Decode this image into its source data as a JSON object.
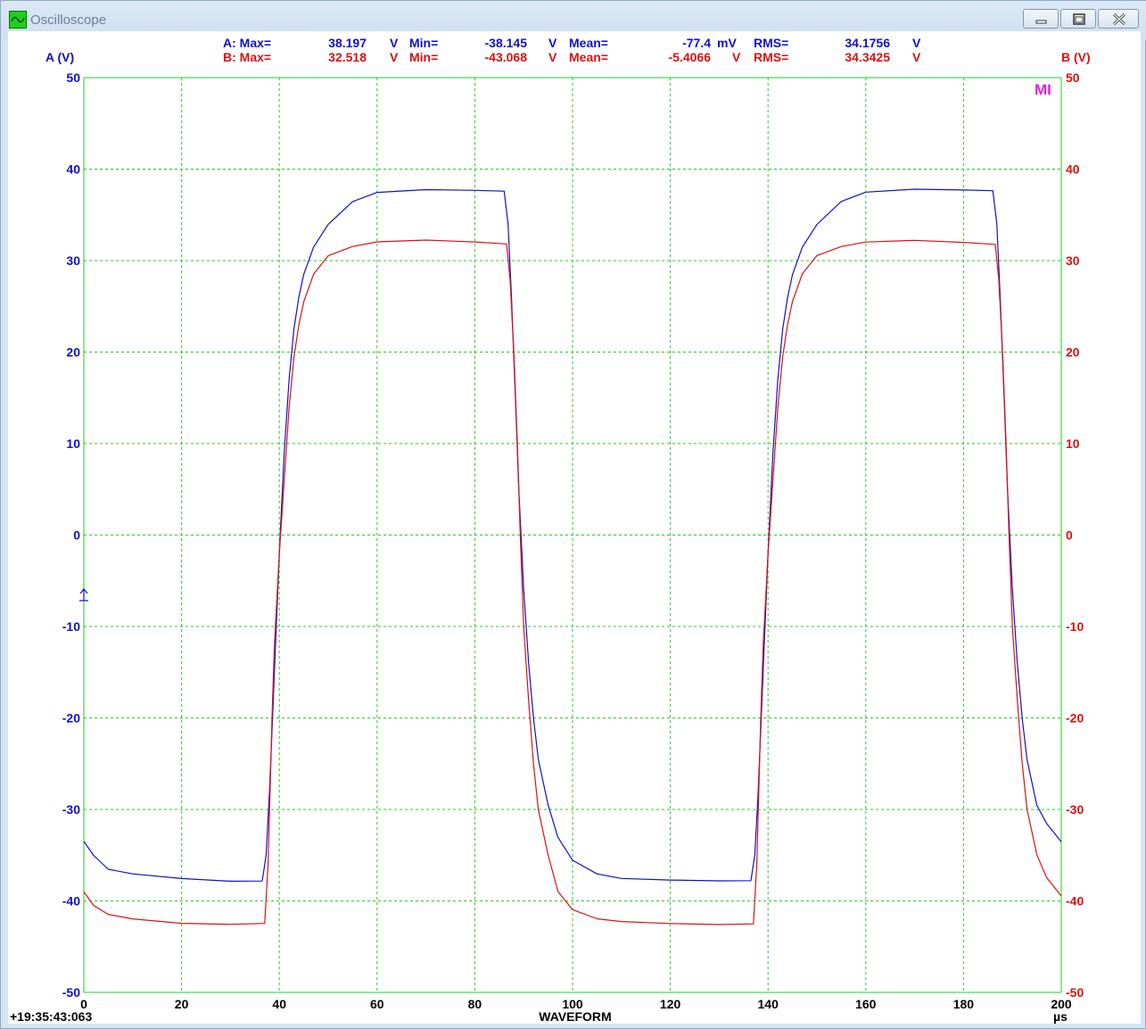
{
  "window": {
    "title": "Oscilloscope",
    "icon": "oscilloscope-icon",
    "buttons": [
      "minimize-icon",
      "maximize-icon",
      "close-icon"
    ]
  },
  "colors": {
    "channel_a": "#1010c8",
    "channel_b": "#dd1010",
    "grid": "#22cc22",
    "marker": "#e020e0"
  },
  "stats": {
    "a": {
      "label": "A: Max=",
      "max": "38.197",
      "max_unit": "V",
      "min_label": "Min=",
      "min": "-38.145",
      "min_unit": "V",
      "mean_label": "Mean=",
      "mean": "-77.4",
      "mean_unit": "mV",
      "rms_label": "RMS=",
      "rms": "34.1756",
      "rms_unit": "V"
    },
    "b": {
      "label": "B: Max=",
      "max": "32.518",
      "max_unit": "V",
      "min_label": "Min=",
      "min": "-43.068",
      "min_unit": "V",
      "mean_label": "Mean=",
      "mean": "-5.4066",
      "mean_unit": "V",
      "rms_label": "RMS=",
      "rms": "34.3425",
      "rms_unit": "V"
    }
  },
  "marker_label": "MI",
  "timestamp": "+19:35:43:063",
  "chart_data": {
    "type": "line",
    "title": "WAVEFORM",
    "xlabel": "µs",
    "y_left_label": "A (V)",
    "y_right_label": "B (V)",
    "xlim": [
      0,
      200
    ],
    "ylim": [
      -50,
      50
    ],
    "x_ticks": [
      "0",
      "20",
      "40",
      "60",
      "80",
      "100",
      "120",
      "140",
      "160",
      "180",
      "200"
    ],
    "y_ticks": [
      "50",
      "40",
      "30",
      "20",
      "10",
      "0",
      "-10",
      "-20",
      "-30",
      "-40",
      "-50"
    ],
    "grid": true,
    "series": [
      {
        "name": "A",
        "x": [
          0,
          2,
          5,
          10,
          20,
          30,
          36.5,
          37.3,
          38,
          39,
          40,
          41,
          42,
          43,
          44,
          45,
          47,
          50,
          55,
          60,
          70,
          80,
          86,
          86.8,
          87.5,
          88.3,
          89,
          90,
          91,
          92,
          93,
          95,
          97,
          100,
          105,
          110,
          120,
          130,
          136.5,
          137.3,
          138,
          139,
          140,
          141,
          142,
          143,
          144,
          145,
          147,
          150,
          155,
          160,
          170,
          180,
          186,
          186.8,
          187.5,
          188.3,
          189,
          190,
          191,
          192,
          193,
          195,
          197,
          200
        ],
        "y": [
          -33.5,
          -35,
          -36.5,
          -37,
          -37.5,
          -37.8,
          -37.8,
          -35,
          -28,
          -15,
          -2,
          9,
          17,
          22.5,
          26,
          28.5,
          31.5,
          34,
          36.5,
          37.5,
          37.8,
          37.7,
          37.6,
          34,
          26,
          15,
          5,
          -6,
          -14,
          -20,
          -24.5,
          -29.5,
          -33,
          -35.5,
          -37,
          -37.5,
          -37.7,
          -37.8,
          -37.8,
          -35,
          -28,
          -15,
          -2,
          9,
          17,
          22.5,
          26,
          28.5,
          31.5,
          34,
          36.5,
          37.5,
          37.8,
          37.7,
          37.6,
          34,
          26,
          15,
          5,
          -6,
          -14,
          -20,
          -24.5,
          -29.5,
          -31.5,
          -33.5
        ]
      },
      {
        "name": "B",
        "x": [
          0,
          2,
          5,
          10,
          20,
          30,
          37,
          37.7,
          38.5,
          39,
          40,
          41,
          42,
          43,
          44,
          45,
          47,
          50,
          55,
          60,
          70,
          80,
          86.5,
          87.2,
          88,
          88.7,
          89.3,
          90,
          91,
          92,
          93,
          95,
          97,
          100,
          105,
          110,
          120,
          130,
          137,
          137.7,
          138.5,
          139,
          140,
          141,
          142,
          143,
          144,
          145,
          147,
          150,
          155,
          160,
          170,
          180,
          186.5,
          187.2,
          188,
          188.7,
          189.3,
          190,
          191,
          192,
          193,
          195,
          197,
          200
        ],
        "y": [
          -39,
          -40.5,
          -41.5,
          -42,
          -42.5,
          -42.6,
          -42.5,
          -36,
          -20,
          -12,
          -2,
          6,
          14,
          19.5,
          23,
          25.5,
          28.5,
          30.5,
          31.5,
          32,
          32.2,
          32,
          31.8,
          28,
          20,
          10,
          0,
          -10,
          -18,
          -25,
          -30,
          -35,
          -39,
          -41,
          -42,
          -42.3,
          -42.5,
          -42.6,
          -42.5,
          -36,
          -20,
          -12,
          -2,
          6,
          14,
          19.5,
          23,
          25.5,
          28.5,
          30.5,
          31.5,
          32,
          32.2,
          32,
          31.8,
          28,
          20,
          10,
          0,
          -10,
          -18,
          -25,
          -30,
          -35,
          -37.5,
          -39.5
        ]
      }
    ]
  }
}
